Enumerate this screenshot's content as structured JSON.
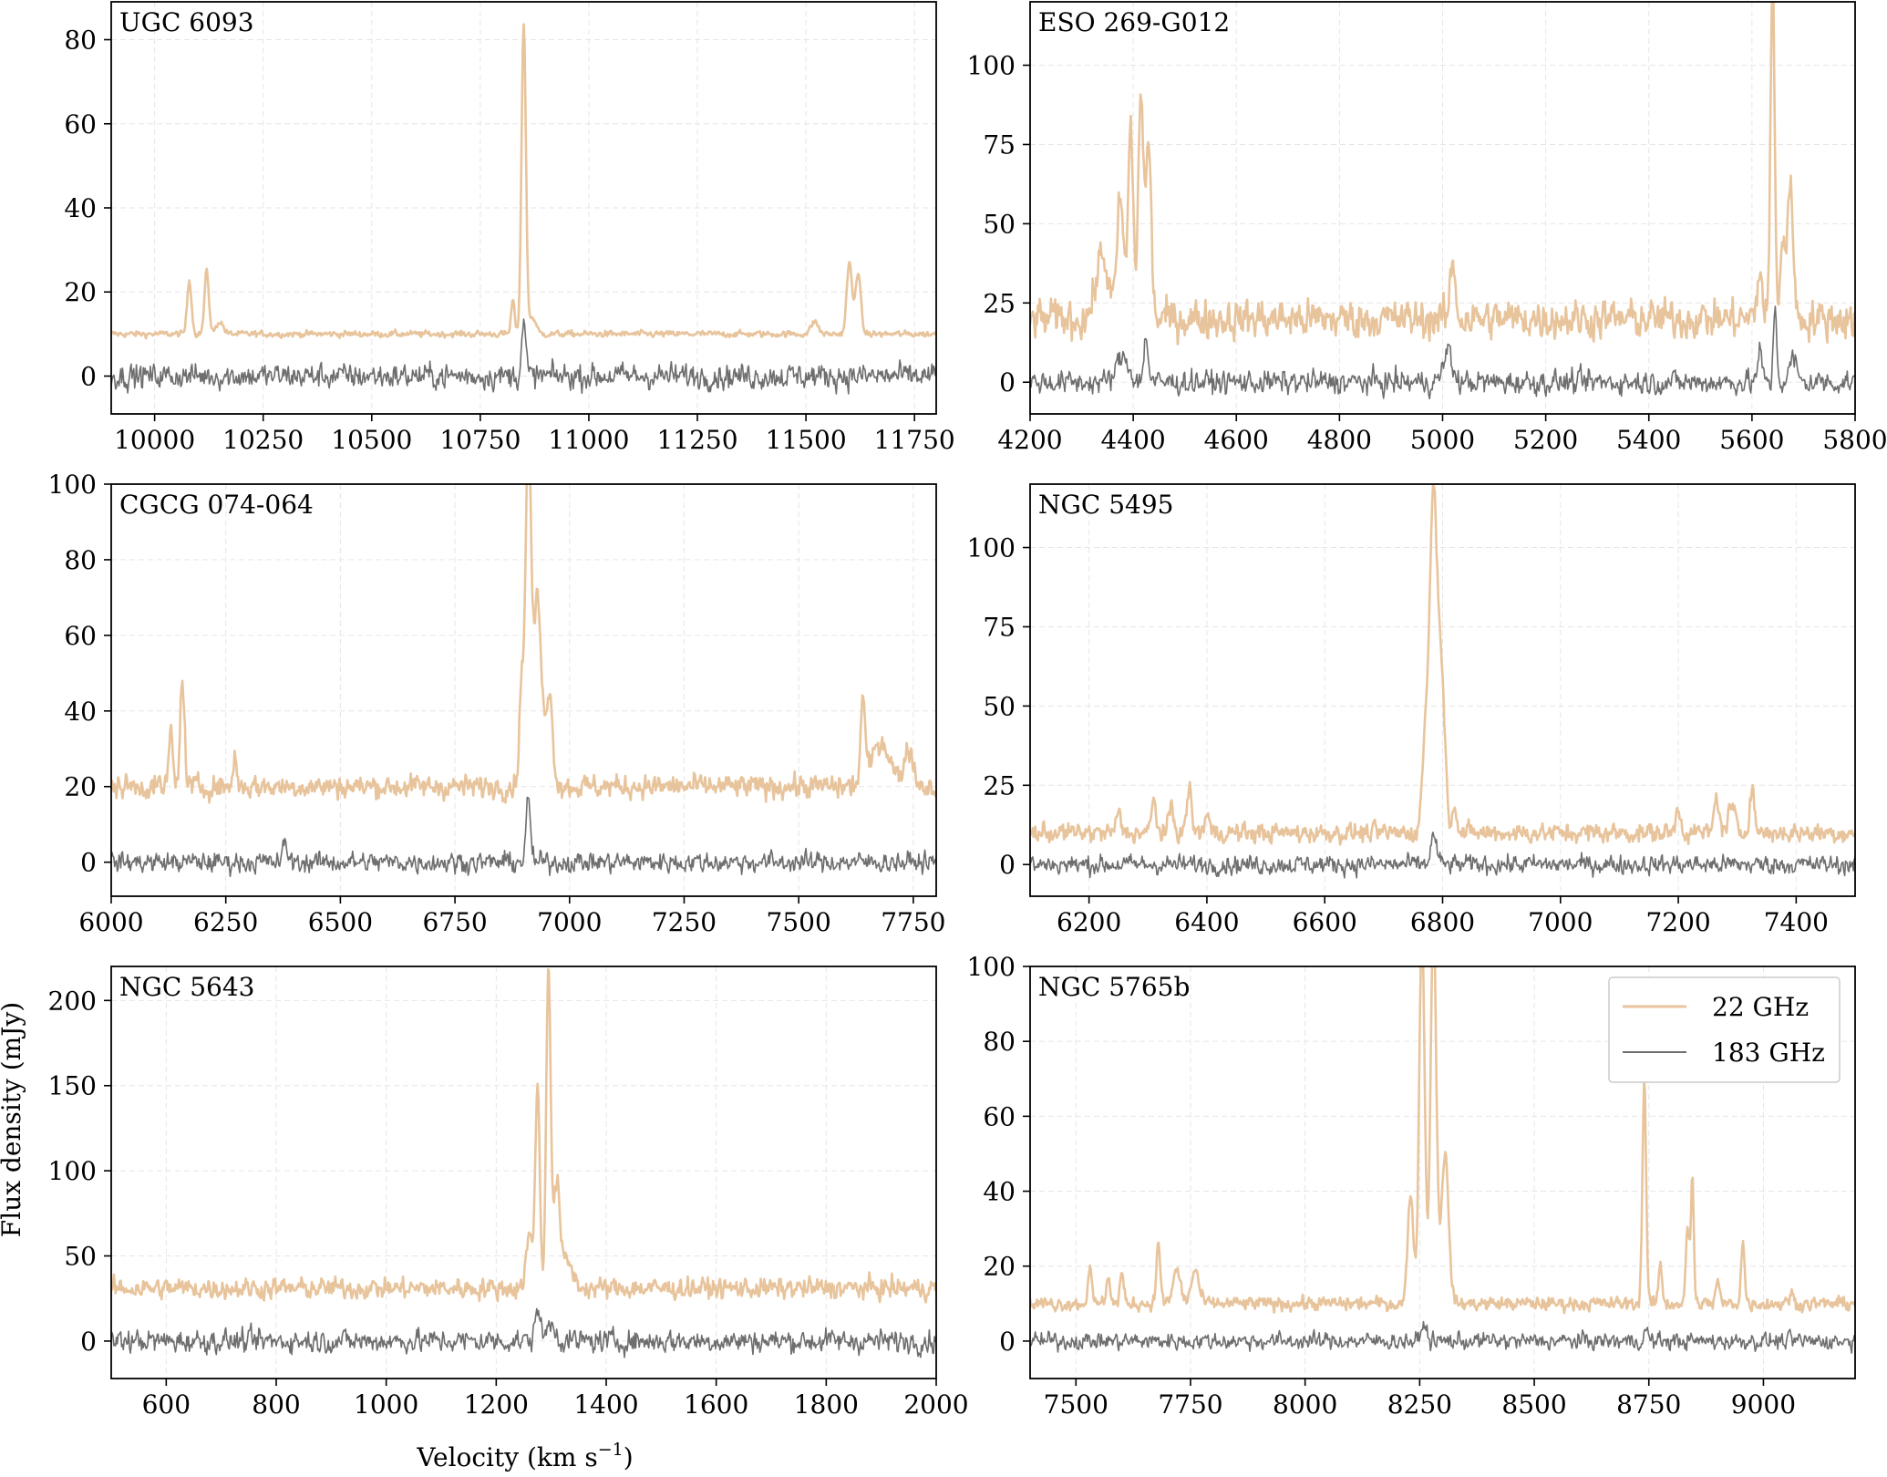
{
  "figure": {
    "ylabel": "Flux density (mJy)",
    "xlabel": "Velocity (km s",
    "xlabel_sup": "−1",
    "xlabel_end": ")"
  },
  "legend": {
    "location": "upper right (NGC 5765b panel)",
    "entries": [
      {
        "label": "22 GHz",
        "color": "#e8c49c"
      },
      {
        "label": "183 GHz",
        "color": "#6e6e6e"
      }
    ]
  },
  "chart_data": [
    {
      "type": "line",
      "title": "UGC 6093",
      "xlim": [
        9900,
        11800
      ],
      "ylim": [
        -9,
        89
      ],
      "xticks": [
        10000,
        10250,
        10500,
        10750,
        11000,
        11250,
        11500,
        11750
      ],
      "yticks": [
        0,
        20,
        40,
        60,
        80
      ],
      "grid": true,
      "series": [
        {
          "name": "22 GHz",
          "color": "#e8c49c",
          "baseline": 10,
          "noise": 0.5,
          "peaks": [
            [
              10080,
              13,
              5
            ],
            [
              10120,
              15,
              5
            ],
            [
              10150,
              3,
              8
            ],
            [
              10825,
              8,
              4
            ],
            [
              10850,
              74,
              5
            ],
            [
              10870,
              4,
              8
            ],
            [
              11520,
              3,
              8
            ],
            [
              11600,
              17,
              6
            ],
            [
              11620,
              15,
              6
            ]
          ]
        },
        {
          "name": "183 GHz",
          "color": "#6e6e6e",
          "baseline": 0,
          "noise": 2,
          "peaks": [
            [
              10850,
              12,
              5
            ]
          ]
        }
      ]
    },
    {
      "type": "line",
      "title": "ESO 269-G012",
      "xlim": [
        4200,
        5800
      ],
      "ylim": [
        -10,
        120
      ],
      "xticks": [
        4200,
        4400,
        4600,
        4800,
        5000,
        5200,
        5400,
        5600,
        5800
      ],
      "yticks": [
        0,
        25,
        50,
        75,
        100
      ],
      "grid": true,
      "series": [
        {
          "name": "22 GHz",
          "color": "#e8c49c",
          "baseline": 20,
          "noise": 4,
          "peaks": [
            [
              4340,
              20,
              12
            ],
            [
              4375,
              38,
              6
            ],
            [
              4395,
              60,
              5
            ],
            [
              4415,
              72,
              5
            ],
            [
              4430,
              55,
              5
            ],
            [
              5020,
              18,
              5
            ],
            [
              5615,
              15,
              5
            ],
            [
              5640,
              105,
              4
            ],
            [
              5660,
              25,
              5
            ],
            [
              5675,
              45,
              5
            ]
          ]
        },
        {
          "name": "183 GHz",
          "color": "#6e6e6e",
          "baseline": 0,
          "noise": 2.5,
          "peaks": [
            [
              4380,
              8,
              12
            ],
            [
              4425,
              15,
              4
            ],
            [
              5010,
              10,
              8
            ],
            [
              5615,
              10,
              4
            ],
            [
              5645,
              25,
              3
            ],
            [
              5680,
              8,
              6
            ]
          ]
        }
      ]
    },
    {
      "type": "line",
      "title": "CGCG 074-064",
      "xlim": [
        6000,
        7800
      ],
      "ylim": [
        -9,
        100
      ],
      "xticks": [
        6000,
        6250,
        6500,
        6750,
        7000,
        7250,
        7500,
        7750
      ],
      "yticks": [
        0,
        20,
        40,
        60,
        80,
        100
      ],
      "grid": true,
      "series": [
        {
          "name": "22 GHz",
          "color": "#e8c49c",
          "baseline": 20,
          "noise": 2,
          "peaks": [
            [
              6130,
              15,
              4
            ],
            [
              6155,
              27,
              5
            ],
            [
              6270,
              8,
              4
            ],
            [
              6895,
              25,
              5
            ],
            [
              6910,
              95,
              6
            ],
            [
              6930,
              50,
              8
            ],
            [
              6955,
              25,
              8
            ],
            [
              7640,
              22,
              5
            ],
            [
              7680,
              12,
              20
            ],
            [
              7740,
              10,
              10
            ]
          ]
        },
        {
          "name": "183 GHz",
          "color": "#6e6e6e",
          "baseline": 0,
          "noise": 1.8,
          "peaks": [
            [
              6380,
              5,
              5
            ],
            [
              6910,
              16,
              5
            ]
          ]
        }
      ]
    },
    {
      "type": "line",
      "title": "NGC 5495",
      "xlim": [
        6100,
        7500
      ],
      "ylim": [
        -10,
        120
      ],
      "xticks": [
        6200,
        6400,
        6600,
        6800,
        7000,
        7200,
        7400
      ],
      "yticks": [
        0,
        25,
        50,
        75,
        100
      ],
      "grid": true,
      "series": [
        {
          "name": "22 GHz",
          "color": "#e8c49c",
          "baseline": 10,
          "noise": 2,
          "peaks": [
            [
              6250,
              6,
              4
            ],
            [
              6310,
              10,
              4
            ],
            [
              6340,
              8,
              4
            ],
            [
              6370,
              14,
              4
            ],
            [
              6400,
              6,
              4
            ],
            [
              6770,
              25,
              5
            ],
            [
              6785,
              110,
              7
            ],
            [
              6800,
              40,
              5
            ],
            [
              6820,
              10,
              4
            ],
            [
              7200,
              8,
              4
            ],
            [
              7265,
              12,
              4
            ],
            [
              7290,
              8,
              6
            ],
            [
              7325,
              15,
              4
            ]
          ]
        },
        {
          "name": "183 GHz",
          "color": "#6e6e6e",
          "baseline": 0,
          "noise": 2,
          "peaks": [
            [
              6785,
              9,
              5
            ]
          ]
        }
      ]
    },
    {
      "type": "line",
      "title": "NGC 5643",
      "xlim": [
        500,
        2000
      ],
      "ylim": [
        -22,
        220
      ],
      "xticks": [
        600,
        800,
        1000,
        1200,
        1400,
        1600,
        1800,
        2000
      ],
      "yticks": [
        0,
        50,
        100,
        150,
        200
      ],
      "grid": true,
      "series": [
        {
          "name": "22 GHz",
          "color": "#e8c49c",
          "baseline": 31,
          "noise": 4,
          "peaks": [
            [
              1260,
              30,
              6
            ],
            [
              1275,
              120,
              4
            ],
            [
              1295,
              190,
              4
            ],
            [
              1310,
              60,
              6
            ],
            [
              1330,
              15,
              10
            ]
          ]
        },
        {
          "name": "183 GHz",
          "color": "#6e6e6e",
          "baseline": 0,
          "noise": 4.5,
          "peaks": [
            [
              1275,
              22,
              4
            ],
            [
              1300,
              10,
              8
            ]
          ]
        }
      ]
    },
    {
      "type": "line",
      "title": "NGC 5765b",
      "xlim": [
        7400,
        9200
      ],
      "ylim": [
        -10,
        100
      ],
      "xticks": [
        7500,
        7750,
        8000,
        8250,
        8500,
        8750,
        9000
      ],
      "yticks": [
        0,
        20,
        40,
        60,
        80,
        100
      ],
      "grid": true,
      "legend": true,
      "series": [
        {
          "name": "22 GHz",
          "color": "#e8c49c",
          "baseline": 10,
          "noise": 1.2,
          "peaks": [
            [
              7530,
              10,
              4
            ],
            [
              7570,
              8,
              4
            ],
            [
              7600,
              8,
              4
            ],
            [
              7680,
              17,
              4
            ],
            [
              7720,
              9,
              8
            ],
            [
              7760,
              9,
              8
            ],
            [
              8230,
              30,
              6
            ],
            [
              8255,
              100,
              6
            ],
            [
              8280,
              105,
              6
            ],
            [
              8305,
              40,
              8
            ],
            [
              8740,
              60,
              4
            ],
            [
              8775,
              10,
              4
            ],
            [
              8835,
              20,
              4
            ],
            [
              8845,
              34,
              3
            ],
            [
              8900,
              6,
              4
            ],
            [
              8955,
              16,
              4
            ],
            [
              9060,
              3,
              4
            ]
          ]
        },
        {
          "name": "183 GHz",
          "color": "#6e6e6e",
          "baseline": 0,
          "noise": 1.5,
          "peaks": [
            [
              8260,
              5,
              5
            ],
            [
              8745,
              3,
              4
            ]
          ]
        }
      ]
    }
  ]
}
